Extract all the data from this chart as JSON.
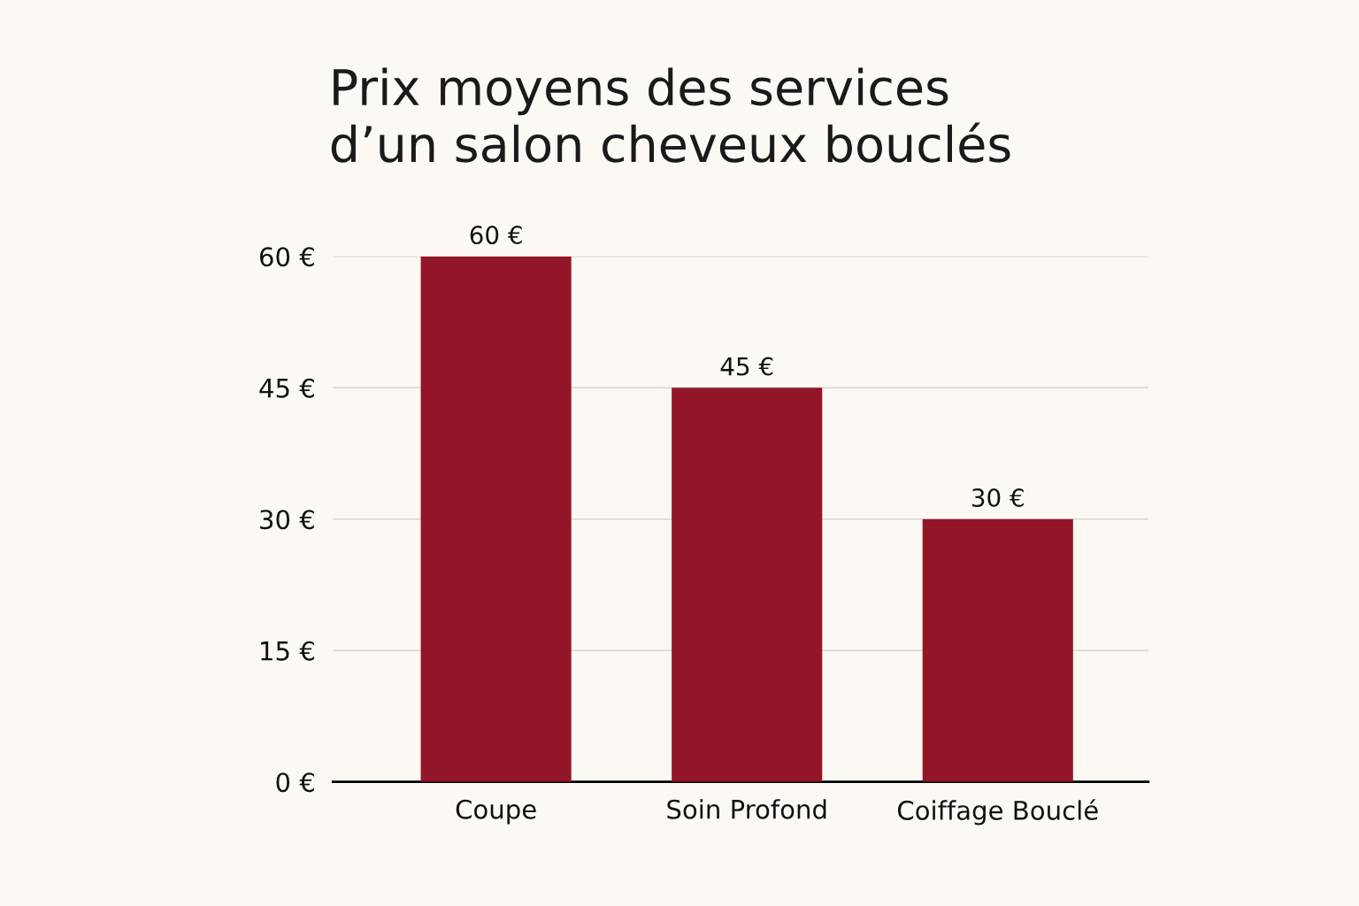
{
  "chart_data": {
    "type": "bar",
    "title": "Prix moyens des services\nd’un salon cheveux bouclés",
    "categories": [
      "Coupe",
      "Soin Profond",
      "Coiffage Bouclé"
    ],
    "values": [
      60,
      45,
      30
    ],
    "value_labels": [
      "60 €",
      "45 €",
      "30 €"
    ],
    "color": "#921628",
    "ylim": [
      0,
      60
    ],
    "yticks": [
      {
        "value": 0,
        "label": "0 €"
      },
      {
        "value": 15,
        "label": "15 €"
      },
      {
        "value": 30,
        "label": "30 €"
      },
      {
        "value": 45,
        "label": "45 €"
      },
      {
        "value": 60,
        "label": "60 €"
      }
    ],
    "grid": "y"
  }
}
